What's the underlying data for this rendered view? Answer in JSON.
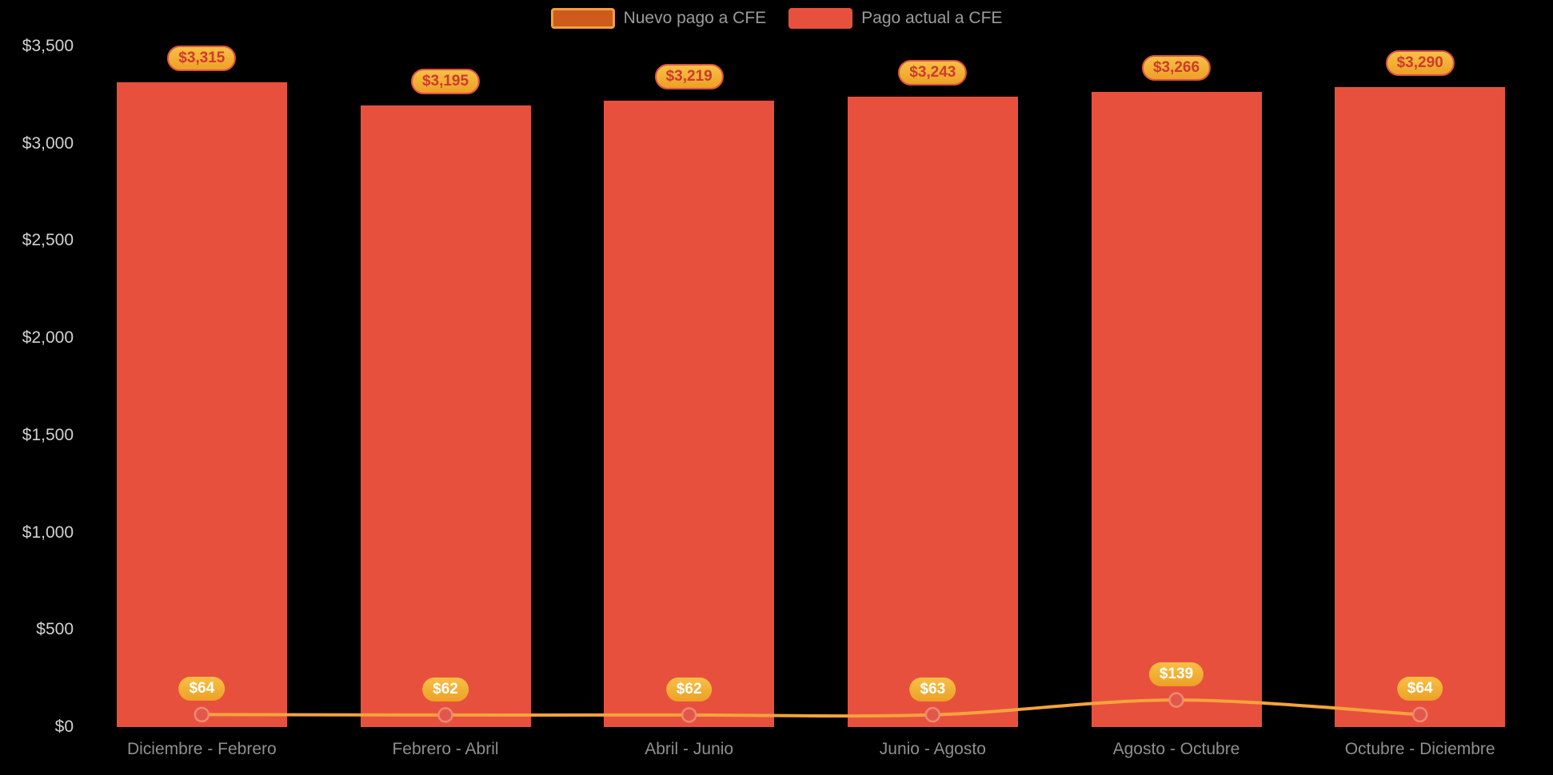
{
  "legend": [
    {
      "label": "Nuevo pago a CFE",
      "swatch_fill": "#ce5b1c",
      "swatch_border": "#f49f3e"
    },
    {
      "label": "Pago actual a CFE",
      "swatch_fill": "#e8503e",
      "swatch_border": "#e8503e"
    }
  ],
  "chart_data": {
    "type": "bar",
    "title": "",
    "xlabel": "",
    "ylabel": "",
    "grid": false,
    "legend_position": "top",
    "background": "#000000",
    "ylim": [
      0,
      3500
    ],
    "y_ticks": [
      {
        "value": 0,
        "label": "$0"
      },
      {
        "value": 500,
        "label": "$500"
      },
      {
        "value": 1000,
        "label": "$1,000"
      },
      {
        "value": 1500,
        "label": "$1,500"
      },
      {
        "value": 2000,
        "label": "$2,000"
      },
      {
        "value": 2500,
        "label": "$2,500"
      },
      {
        "value": 3000,
        "label": "$3,000"
      },
      {
        "value": 3500,
        "label": "$3,500"
      }
    ],
    "categories": [
      "Diciembre - Febrero",
      "Febrero - Abril",
      "Abril - Junio",
      "Junio - Agosto",
      "Agosto - Octubre",
      "Octubre - Diciembre"
    ],
    "series": [
      {
        "name": "Pago actual a CFE",
        "chart_type": "bar",
        "color": "#e8503e",
        "values": [
          3315,
          3195,
          3219,
          3243,
          3266,
          3290
        ],
        "data_labels": [
          "$3,315",
          "$3,195",
          "$3,219",
          "$3,243",
          "$3,266",
          "$3,290"
        ]
      },
      {
        "name": "Nuevo pago a CFE",
        "chart_type": "line",
        "color": "#f5a33c",
        "point_color": "#e2574c",
        "point_stroke": "#ef8a72",
        "values": [
          64,
          62,
          62,
          63,
          139,
          64
        ],
        "data_labels": [
          "$64",
          "$62",
          "$62",
          "$63",
          "$139",
          "$64"
        ]
      }
    ],
    "badge_colors": {
      "background": "#f1ac2f",
      "bar_badge_text": "#ce3a2e",
      "bar_badge_border": "#de5244",
      "line_badge_text": "#ffffff"
    }
  }
}
